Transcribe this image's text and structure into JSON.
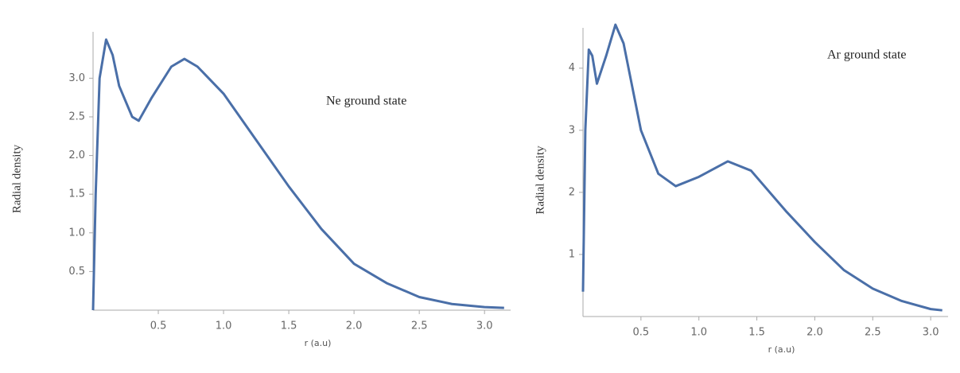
{
  "chart_data": [
    {
      "type": "line",
      "annotation": "Ne ground state",
      "y_label": "Radial density",
      "x_label": "r (a.u)",
      "x": [
        0,
        0.02,
        0.05,
        0.1,
        0.15,
        0.2,
        0.3,
        0.35,
        0.45,
        0.6,
        0.7,
        0.8,
        1.0,
        1.25,
        1.5,
        1.75,
        2.0,
        2.25,
        2.5,
        2.75,
        3.0,
        3.15
      ],
      "series": [
        {
          "color": "#4a6fa8",
          "values": [
            0,
            1.5,
            3.0,
            3.5,
            3.3,
            2.9,
            2.5,
            2.45,
            2.75,
            3.15,
            3.25,
            3.15,
            2.8,
            2.2,
            1.6,
            1.05,
            0.6,
            0.35,
            0.17,
            0.08,
            0.04,
            0.03
          ]
        }
      ],
      "xlim": [
        0,
        3.2
      ],
      "ylim": [
        0,
        3.6
      ],
      "xticks": [
        0.5,
        {
          "value": 1,
          "label": "1.0"
        },
        1.5,
        {
          "value": 2,
          "label": "2.0"
        },
        2.5,
        {
          "value": 3,
          "label": "3.0"
        }
      ],
      "yticks": [
        0.5,
        {
          "value": 1,
          "label": "1.0"
        },
        1.5,
        {
          "value": 2,
          "label": "2.0"
        },
        2.5,
        {
          "value": 3,
          "label": "3.0"
        }
      ]
    },
    {
      "type": "line",
      "annotation": "Ar ground state",
      "y_label": "Radial density",
      "x_label": "r (a.u)",
      "x": [
        0,
        0.02,
        0.05,
        0.08,
        0.12,
        0.2,
        0.28,
        0.35,
        0.5,
        0.65,
        0.8,
        1.0,
        1.25,
        1.45,
        1.75,
        2.0,
        2.25,
        2.5,
        2.75,
        3.0,
        3.1
      ],
      "series": [
        {
          "color": "#4a6fa8",
          "values": [
            0.4,
            3.0,
            4.3,
            4.2,
            3.75,
            4.2,
            4.7,
            4.4,
            3.0,
            2.3,
            2.1,
            2.25,
            2.5,
            2.35,
            1.7,
            1.2,
            0.75,
            0.45,
            0.25,
            0.12,
            0.1
          ]
        }
      ],
      "xlim": [
        0,
        3.15
      ],
      "ylim": [
        0,
        4.65
      ],
      "xticks": [
        0.5,
        {
          "value": 1,
          "label": "1.0"
        },
        1.5,
        {
          "value": 2,
          "label": "2.0"
        },
        2.5,
        {
          "value": 3,
          "label": "3.0"
        }
      ],
      "yticks": [
        1,
        2,
        3,
        4
      ]
    }
  ]
}
